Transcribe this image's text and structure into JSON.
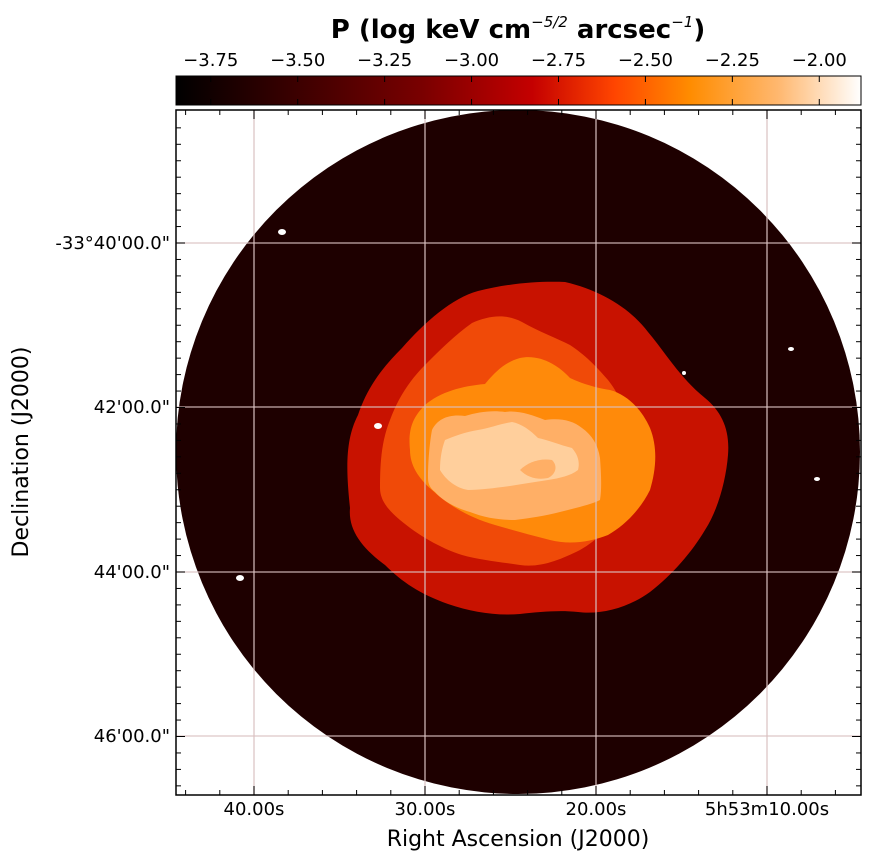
{
  "colorbar": {
    "title_main": "P (log keV cm",
    "title_exp1": "−5/2",
    "title_mid": " arcsec",
    "title_exp2": "−1",
    "title_end": ")",
    "range": [
      -3.85,
      -1.88
    ],
    "ticks": [
      "−3.75",
      "−3.50",
      "−3.25",
      "−3.00",
      "−2.75",
      "−2.50",
      "−2.25",
      "−2.00"
    ],
    "tick_values": [
      -3.75,
      -3.5,
      -3.25,
      -3.0,
      -2.75,
      -2.5,
      -2.25,
      -2.0
    ],
    "colors": [
      "#000000",
      "#3d0000",
      "#7a0000",
      "#c40000",
      "#ff4500",
      "#ff8c00",
      "#ffb870",
      "#ffffff"
    ]
  },
  "axes": {
    "xlabel": "Right Ascension (J2000)",
    "ylabel": "Declination (J2000)",
    "xticks": [
      "40.00s",
      "30.00s",
      "20.00s",
      "5h53m10.00s"
    ],
    "yticks": [
      "-33°40'00.0\"",
      "42'00.0\"",
      "44'00.0\"",
      "46'00.0\""
    ],
    "grid": true
  },
  "chart_data": {
    "type": "heatmap",
    "title": "P (log keV cm−5/2 arcsec−1)",
    "xlabel": "Right Ascension (J2000)",
    "ylabel": "Declination (J2000)",
    "x_tick_labels": [
      "40.00s",
      "30.00s",
      "20.00s",
      "5h53m10.00s"
    ],
    "y_tick_labels": [
      "-33°40'00.0\"",
      "42'00.0\"",
      "44'00.0\"",
      "46'00.0\""
    ],
    "color_range": [
      -3.85,
      -1.88
    ],
    "background_level": -3.72,
    "regions": [
      {
        "level": -3.72,
        "color": "#1e0000"
      },
      {
        "level": -2.95,
        "color": "#c81200"
      },
      {
        "level": -2.68,
        "color": "#f04a08"
      },
      {
        "level": -2.48,
        "color": "#ff8a0a"
      },
      {
        "level": -2.22,
        "color": "#ffaf66"
      },
      {
        "level": -2.07,
        "color": "#ffcf9c"
      }
    ]
  }
}
